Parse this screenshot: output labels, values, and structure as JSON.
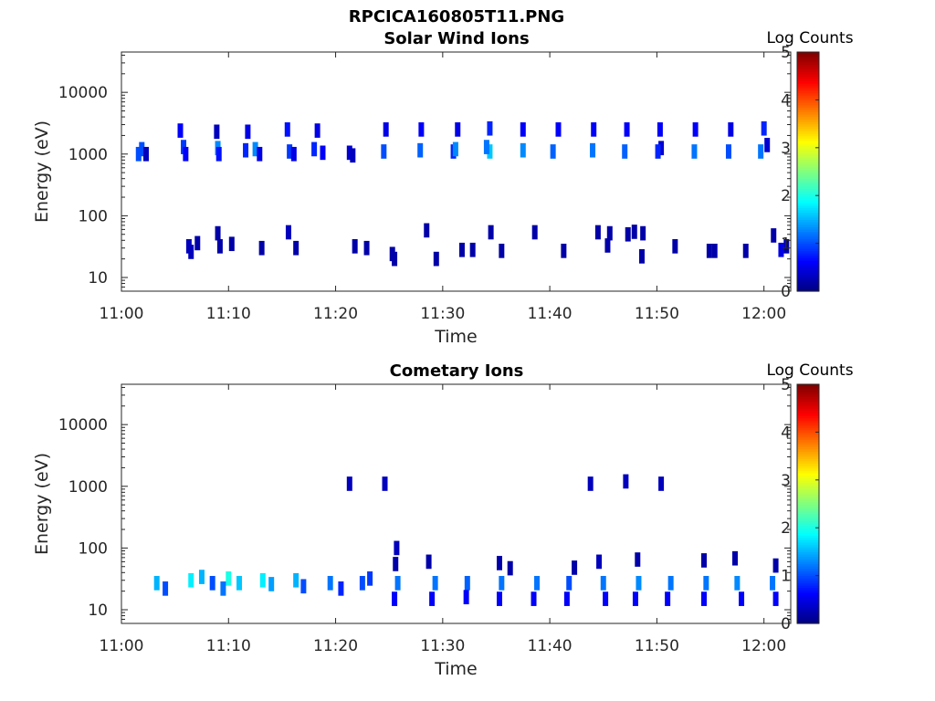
{
  "figure_title": "RPCICA160805T11.PNG",
  "chart_data": [
    {
      "type": "heatmap",
      "title": "Solar Wind Ions",
      "xlabel": "Time",
      "ylabel": "Energy (eV)",
      "x_ticks": [
        "11:00",
        "11:10",
        "11:20",
        "11:30",
        "11:40",
        "11:50",
        "12:00"
      ],
      "y_ticks": [
        "10",
        "100",
        "1000",
        "10000"
      ],
      "y_scale": "log",
      "ylim": [
        6,
        45000
      ],
      "xlim_minutes": [
        0,
        62.5
      ],
      "colorbar": {
        "label": "Log Counts",
        "range": [
          0,
          5
        ],
        "ticks": [
          "0",
          "1",
          "2",
          "3",
          "4",
          "5"
        ],
        "colormap": "jet"
      },
      "cells": [
        [
          1.6,
          6.0,
          1000,
          1.0
        ],
        [
          1.9,
          6.0,
          1200,
          1.0
        ],
        [
          2.3,
          6.0,
          1000,
          0.3
        ],
        [
          5.5,
          6.0,
          2400,
          0.6
        ],
        [
          5.8,
          6.0,
          1300,
          0.9
        ],
        [
          6.0,
          6.0,
          1000,
          0.6
        ],
        [
          8.9,
          6.0,
          2300,
          0.3
        ],
        [
          9.0,
          6.0,
          1250,
          1.3
        ],
        [
          9.1,
          6.0,
          1000,
          0.7
        ],
        [
          11.8,
          6.0,
          2300,
          0.5
        ],
        [
          11.6,
          6.0,
          1150,
          0.8
        ],
        [
          12.5,
          6.0,
          1200,
          1.3
        ],
        [
          12.9,
          6.0,
          1000,
          0.5
        ],
        [
          15.5,
          6.0,
          2500,
          0.7
        ],
        [
          15.7,
          6.0,
          1100,
          0.9
        ],
        [
          16.1,
          6.0,
          1000,
          0.5
        ],
        [
          18.3,
          6.0,
          2400,
          0.5
        ],
        [
          18.0,
          6.0,
          1200,
          0.8
        ],
        [
          18.8,
          6.0,
          1050,
          0.6
        ],
        [
          21.3,
          6.0,
          1050,
          0.4
        ],
        [
          21.6,
          6.0,
          950,
          0.3
        ],
        [
          24.7,
          6.0,
          2500,
          0.5
        ],
        [
          24.5,
          6.0,
          1100,
          1.0
        ],
        [
          28.0,
          6.0,
          2500,
          0.6
        ],
        [
          27.9,
          6.0,
          1150,
          1.1
        ],
        [
          31.4,
          6.0,
          2500,
          0.5
        ],
        [
          31.0,
          6.0,
          1100,
          0.8
        ],
        [
          31.2,
          6.0,
          1200,
          1.3
        ],
        [
          34.4,
          6.0,
          2600,
          0.8
        ],
        [
          34.4,
          6.0,
          1100,
          1.6
        ],
        [
          34.1,
          6.0,
          1300,
          1.2
        ],
        [
          37.5,
          6.0,
          2500,
          0.6
        ],
        [
          37.5,
          6.0,
          1150,
          1.3
        ],
        [
          40.8,
          6.0,
          2500,
          0.6
        ],
        [
          40.3,
          6.0,
          1100,
          1.1
        ],
        [
          44.1,
          6.0,
          2500,
          0.6
        ],
        [
          44.0,
          6.0,
          1150,
          1.2
        ],
        [
          47.2,
          6.0,
          2500,
          0.6
        ],
        [
          47.0,
          6.0,
          1100,
          1.1
        ],
        [
          50.3,
          6.0,
          2500,
          0.6
        ],
        [
          50.4,
          6.0,
          1250,
          0.4
        ],
        [
          50.1,
          6.0,
          1100,
          0.8
        ],
        [
          53.6,
          6.0,
          2500,
          0.6
        ],
        [
          53.5,
          6.0,
          1100,
          1.2
        ],
        [
          56.9,
          6.0,
          2500,
          0.5
        ],
        [
          56.7,
          6.0,
          1100,
          1.0
        ],
        [
          60.0,
          6.0,
          2600,
          0.8
        ],
        [
          59.7,
          6.0,
          1100,
          1.2
        ],
        [
          60.3,
          6.0,
          1400,
          0.4
        ],
        [
          6.3,
          6.0,
          32,
          0.3
        ],
        [
          7.1,
          6.0,
          36,
          0.2
        ],
        [
          6.5,
          6.0,
          26,
          0.3
        ],
        [
          9.0,
          6.0,
          52,
          0.2
        ],
        [
          9.2,
          6.0,
          32,
          0.2
        ],
        [
          10.3,
          6.0,
          35,
          0.2
        ],
        [
          13.1,
          6.0,
          30,
          0.2
        ],
        [
          15.6,
          6.0,
          54,
          0.3
        ],
        [
          16.3,
          6.0,
          30,
          0.2
        ],
        [
          21.8,
          6.0,
          32,
          0.2
        ],
        [
          22.9,
          6.0,
          30,
          0.2
        ],
        [
          25.3,
          6.0,
          24,
          0.2
        ],
        [
          25.5,
          6.0,
          20,
          0.2
        ],
        [
          28.5,
          6.0,
          58,
          0.2
        ],
        [
          29.4,
          6.0,
          20,
          0.2
        ],
        [
          31.8,
          6.0,
          28,
          0.2
        ],
        [
          32.8,
          6.0,
          28,
          0.2
        ],
        [
          34.5,
          6.0,
          54,
          0.2
        ],
        [
          35.5,
          6.0,
          27,
          0.2
        ],
        [
          38.6,
          6.0,
          54,
          0.2
        ],
        [
          41.3,
          6.0,
          27,
          0.2
        ],
        [
          44.5,
          6.0,
          54,
          0.2
        ],
        [
          45.6,
          6.0,
          52,
          0.2
        ],
        [
          45.4,
          6.0,
          33,
          0.2
        ],
        [
          47.3,
          6.0,
          50,
          0.2
        ],
        [
          47.9,
          6.0,
          55,
          0.2
        ],
        [
          48.7,
          6.0,
          52,
          0.2
        ],
        [
          48.6,
          6.0,
          22,
          0.2
        ],
        [
          51.7,
          6.0,
          32,
          0.2
        ],
        [
          54.9,
          6.0,
          27,
          0.2
        ],
        [
          55.4,
          6.0,
          27,
          0.2
        ],
        [
          58.3,
          6.0,
          27,
          0.2
        ],
        [
          60.9,
          6.0,
          48,
          0.2
        ],
        [
          61.6,
          6.0,
          28,
          0.5
        ],
        [
          62.1,
          6.0,
          32,
          0.2
        ]
      ]
    },
    {
      "type": "heatmap",
      "title": "Cometary Ions",
      "xlabel": "Time",
      "ylabel": "Energy (eV)",
      "x_ticks": [
        "11:00",
        "11:10",
        "11:20",
        "11:30",
        "11:40",
        "11:50",
        "12:00"
      ],
      "y_ticks": [
        "10",
        "100",
        "1000",
        "10000"
      ],
      "y_scale": "log",
      "ylim": [
        6,
        45000
      ],
      "xlim_minutes": [
        0,
        62.5
      ],
      "colorbar": {
        "label": "Log Counts",
        "range": [
          0,
          5
        ],
        "ticks": [
          "0",
          "1",
          "2",
          "3",
          "4",
          "5"
        ],
        "colormap": "jet"
      },
      "cells": [
        [
          3.3,
          6.0,
          27,
          1.5
        ],
        [
          4.1,
          6.0,
          22,
          1.0
        ],
        [
          6.5,
          6.0,
          30,
          1.8
        ],
        [
          7.5,
          6.0,
          34,
          1.5
        ],
        [
          8.5,
          6.0,
          27,
          1.0
        ],
        [
          10.0,
          6.0,
          32,
          2.0
        ],
        [
          11.0,
          6.0,
          27,
          1.6
        ],
        [
          9.5,
          6.0,
          22,
          1.2
        ],
        [
          13.2,
          6.0,
          30,
          1.8
        ],
        [
          14.0,
          6.0,
          26,
          1.4
        ],
        [
          16.3,
          6.0,
          30,
          1.5
        ],
        [
          17.0,
          6.0,
          24,
          1.0
        ],
        [
          19.5,
          6.0,
          27,
          1.2
        ],
        [
          20.5,
          6.0,
          22,
          0.8
        ],
        [
          22.5,
          6.0,
          27,
          1.0
        ],
        [
          23.2,
          6.0,
          32,
          0.9
        ],
        [
          25.8,
          6.0,
          27,
          1.2
        ],
        [
          25.5,
          6.0,
          15,
          0.6
        ],
        [
          25.7,
          6.0,
          100,
          0.3
        ],
        [
          25.6,
          6.0,
          55,
          0.2
        ],
        [
          29.3,
          6.0,
          27,
          1.2
        ],
        [
          29.0,
          6.0,
          15,
          0.6
        ],
        [
          28.7,
          6.0,
          60,
          0.2
        ],
        [
          32.3,
          6.0,
          27,
          1.1
        ],
        [
          32.2,
          6.0,
          16,
          0.6
        ],
        [
          35.5,
          6.0,
          27,
          1.2
        ],
        [
          35.3,
          6.0,
          15,
          0.6
        ],
        [
          35.3,
          6.0,
          57,
          0.2
        ],
        [
          36.3,
          6.0,
          47,
          0.2
        ],
        [
          38.8,
          6.0,
          27,
          1.2
        ],
        [
          38.5,
          6.0,
          15,
          0.6
        ],
        [
          41.8,
          6.0,
          27,
          1.0
        ],
        [
          42.3,
          6.0,
          48,
          0.2
        ],
        [
          41.6,
          6.0,
          15,
          0.6
        ],
        [
          45.0,
          6.0,
          27,
          1.2
        ],
        [
          45.2,
          6.0,
          15,
          0.6
        ],
        [
          44.6,
          6.0,
          60,
          0.3
        ],
        [
          48.3,
          6.0,
          27,
          1.3
        ],
        [
          48.0,
          6.0,
          15,
          0.6
        ],
        [
          48.2,
          6.0,
          65,
          0.2
        ],
        [
          51.3,
          6.0,
          27,
          1.2
        ],
        [
          51.0,
          6.0,
          15,
          0.6
        ],
        [
          54.6,
          6.0,
          27,
          1.2
        ],
        [
          54.4,
          6.0,
          15,
          0.6
        ],
        [
          54.4,
          6.0,
          63,
          0.2
        ],
        [
          57.5,
          6.0,
          27,
          1.3
        ],
        [
          57.9,
          6.0,
          15,
          0.6
        ],
        [
          57.3,
          6.0,
          68,
          0.2
        ],
        [
          60.8,
          6.0,
          27,
          1.2
        ],
        [
          61.1,
          6.0,
          15,
          0.6
        ],
        [
          61.1,
          6.0,
          52,
          0.2
        ],
        [
          21.3,
          6.0,
          1100,
          0.3
        ],
        [
          24.6,
          6.0,
          1100,
          0.3
        ],
        [
          43.8,
          6.0,
          1100,
          0.3
        ],
        [
          47.1,
          6.0,
          1200,
          0.3
        ],
        [
          50.4,
          6.0,
          1100,
          0.3
        ]
      ]
    }
  ]
}
